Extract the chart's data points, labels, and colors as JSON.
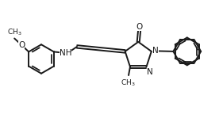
{
  "bg_color": "#ffffff",
  "line_color": "#1a1a1a",
  "line_width": 1.4,
  "font_size": 7.5,
  "fig_width": 2.81,
  "fig_height": 1.49,
  "dpi": 100,
  "xlim": [
    0,
    10
  ],
  "ylim": [
    0,
    4.2
  ]
}
